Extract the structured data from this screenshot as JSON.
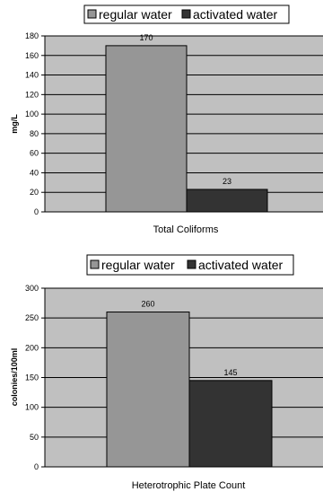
{
  "chart_data": [
    {
      "type": "bar",
      "categories": [
        "Total Coliforms"
      ],
      "series": [
        {
          "name": "regular water",
          "values": [
            170
          ]
        },
        {
          "name": "activated water",
          "values": [
            23
          ]
        }
      ],
      "data_labels": [
        "170",
        "23"
      ],
      "title": "",
      "xlabel": "Total Coliforms",
      "ylabel": "mg/L",
      "ylim": [
        0,
        180
      ],
      "yticks": [
        "0",
        "20",
        "40",
        "60",
        "80",
        "100",
        "120",
        "140",
        "160",
        "180"
      ],
      "grid": true,
      "legend": "top",
      "plot_background": "#c0c0c0",
      "colors": [
        "#969696",
        "#333333"
      ]
    },
    {
      "type": "bar",
      "categories": [
        "Heterotrophic Plate Count"
      ],
      "series": [
        {
          "name": "regular water",
          "values": [
            260
          ]
        },
        {
          "name": "activated water",
          "values": [
            145
          ]
        }
      ],
      "data_labels": [
        "260",
        "145"
      ],
      "title": "",
      "xlabel": "Heterotrophic Plate Count",
      "ylabel": "colonies/100ml",
      "ylim": [
        0,
        300
      ],
      "yticks": [
        "0",
        "50",
        "100",
        "150",
        "200",
        "250",
        "300"
      ],
      "grid": true,
      "legend": "top",
      "plot_background": "#c0c0c0",
      "colors": [
        "#969696",
        "#333333"
      ]
    }
  ]
}
